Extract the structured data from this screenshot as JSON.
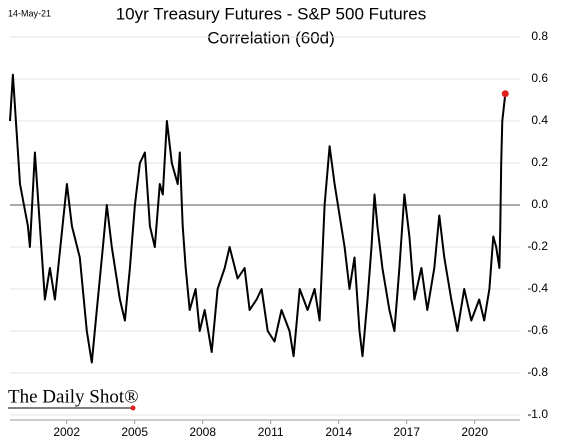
{
  "chart_data": {
    "type": "line",
    "date_label": "14-May-21",
    "title": "10yr Treasury Futures - S&P 500 Futures",
    "subtitle": "Correlation (60d)",
    "source": "The Daily Shot®",
    "x": [
      1999.5,
      1999.63,
      1999.94,
      2000.29,
      2000.38,
      2000.6,
      2001.04,
      2001.26,
      2001.48,
      2002.01,
      2002.23,
      2002.58,
      2002.89,
      2003.11,
      2003.33,
      2003.6,
      2003.77,
      2003.99,
      2004.35,
      2004.57,
      2004.79,
      2005.01,
      2005.23,
      2005.45,
      2005.67,
      2005.89,
      2006.11,
      2006.24,
      2006.42,
      2006.64,
      2006.9,
      2006.99,
      2007.12,
      2007.25,
      2007.43,
      2007.69,
      2007.87,
      2008.09,
      2008.4,
      2008.66,
      2008.97,
      2009.19,
      2009.54,
      2009.85,
      2010.07,
      2010.38,
      2010.6,
      2010.87,
      2011.17,
      2011.48,
      2011.83,
      2012.01,
      2012.28,
      2012.63,
      2012.94,
      2013.16,
      2013.38,
      2013.6,
      2013.82,
      2014.04,
      2014.26,
      2014.48,
      2014.7,
      2014.92,
      2015.05,
      2015.27,
      2015.45,
      2015.58,
      2015.71,
      2015.93,
      2016.24,
      2016.46,
      2016.68,
      2016.9,
      2017.12,
      2017.34,
      2017.65,
      2017.91,
      2018.22,
      2018.44,
      2018.66,
      2018.97,
      2019.24,
      2019.54,
      2019.85,
      2020.2,
      2020.42,
      2020.65,
      2020.82,
      2020.95,
      2021.09,
      2021.13,
      2021.17,
      2021.22,
      2021.35
    ],
    "series": [
      {
        "color": "#000000",
        "values": [
          0.4,
          0.62,
          0.1,
          -0.1,
          -0.2,
          0.25,
          -0.45,
          -0.3,
          -0.45,
          0.1,
          -0.1,
          -0.25,
          -0.6,
          -0.75,
          -0.5,
          -0.2,
          0.0,
          -0.2,
          -0.45,
          -0.55,
          -0.3,
          0.0,
          0.2,
          0.25,
          -0.1,
          -0.2,
          0.1,
          0.05,
          0.4,
          0.2,
          0.1,
          0.25,
          -0.1,
          -0.3,
          -0.5,
          -0.4,
          -0.6,
          -0.5,
          -0.7,
          -0.4,
          -0.3,
          -0.2,
          -0.35,
          -0.3,
          -0.5,
          -0.45,
          -0.4,
          -0.6,
          -0.65,
          -0.5,
          -0.6,
          -0.72,
          -0.4,
          -0.5,
          -0.4,
          -0.55,
          0.0,
          0.28,
          0.1,
          -0.05,
          -0.2,
          -0.4,
          -0.25,
          -0.6,
          -0.72,
          -0.45,
          -0.2,
          0.05,
          -0.1,
          -0.3,
          -0.5,
          -0.6,
          -0.3,
          0.05,
          -0.15,
          -0.45,
          -0.3,
          -0.5,
          -0.3,
          -0.05,
          -0.25,
          -0.45,
          -0.6,
          -0.4,
          -0.55,
          -0.45,
          -0.55,
          -0.4,
          -0.15,
          -0.2,
          -0.3,
          -0.1,
          0.2,
          0.4,
          0.53
        ]
      }
    ],
    "end_marker_color": "#e0201b",
    "xlim": [
      1999.5,
      2022
    ],
    "xticks": [
      2002,
      2005,
      2008,
      2011,
      2014,
      2017,
      2020
    ],
    "ylim": [
      -1.0,
      0.8
    ],
    "yticks": [
      0.8,
      0.6,
      0.4,
      0.2,
      {
        "value": 0,
        "label": "0.0"
      },
      -0.2,
      -0.4,
      -0.6,
      -0.8,
      {
        "value": -1,
        "label": "-1.0"
      }
    ],
    "grid": true
  }
}
